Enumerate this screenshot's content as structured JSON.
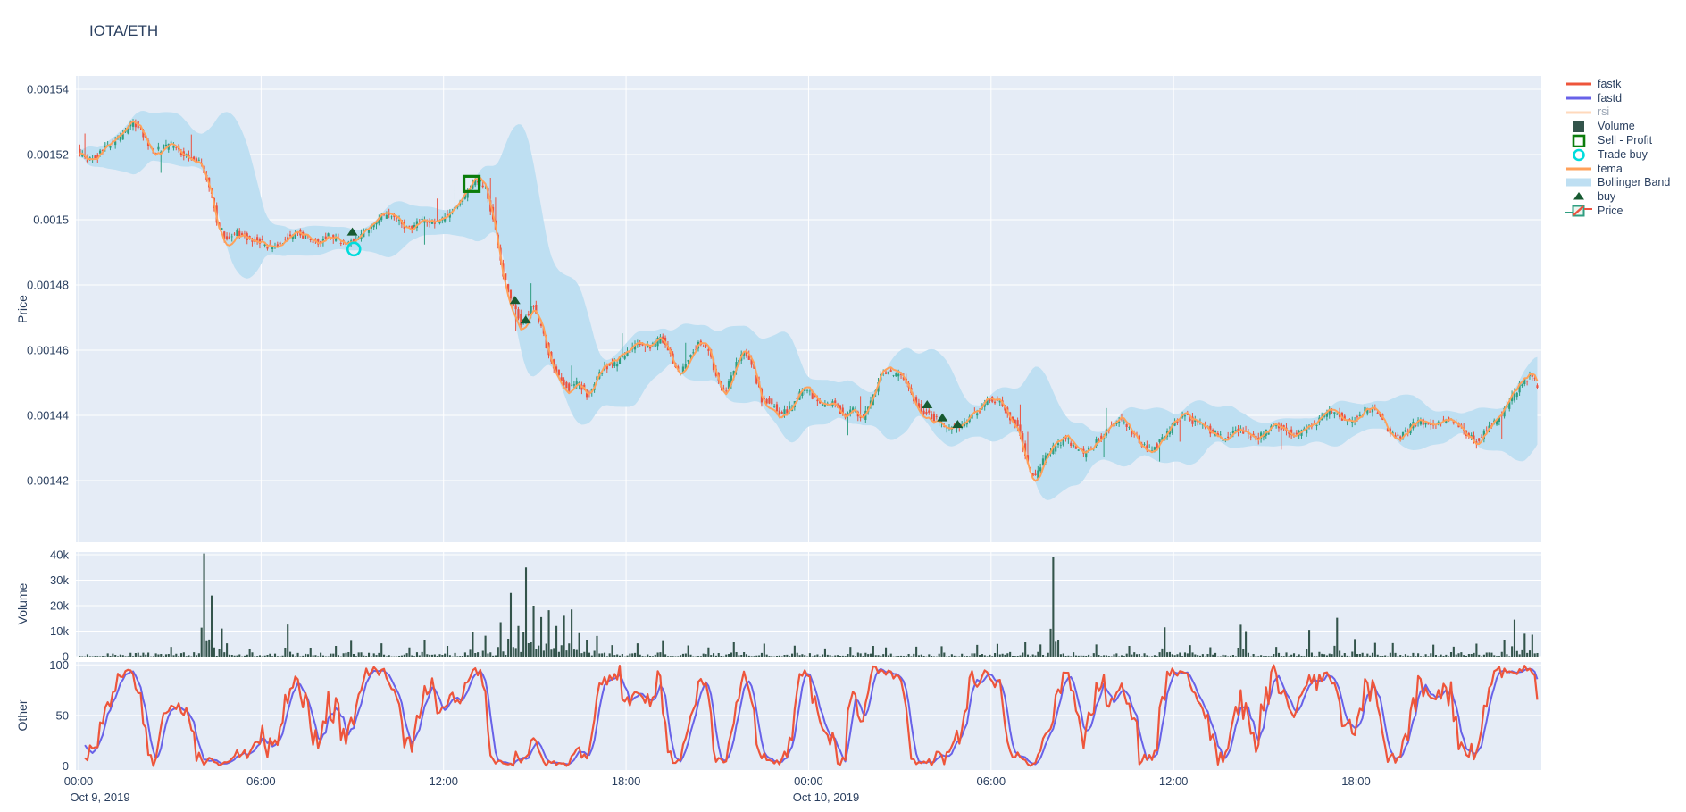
{
  "title": "IOTA/ETH",
  "chart_data": {
    "type": "candlestick",
    "symbol": "IOTA/ETH",
    "x_axis": {
      "tick_labels": [
        "00:00",
        "06:00",
        "12:00",
        "18:00",
        "00:00",
        "06:00",
        "12:00",
        "18:00"
      ],
      "tick_hours": [
        0,
        6,
        12,
        18,
        24,
        30,
        36,
        42
      ],
      "date_labels": [
        "Oct 9, 2019",
        "Oct 10, 2019"
      ],
      "range_hours": [
        0,
        48
      ],
      "start": "2019-10-09 00:00"
    },
    "panels": [
      {
        "name": "price",
        "ylabel": "Price",
        "ticks": [
          "0.00154",
          "0.00152",
          "0.0015",
          "0.00148",
          "0.00146",
          "0.00144",
          "0.00142"
        ],
        "tick_values": [
          0.00154,
          0.00152,
          0.0015,
          0.00148,
          0.00146,
          0.00144,
          0.00142
        ],
        "range": [
          0.001401,
          0.001544
        ]
      },
      {
        "name": "volume",
        "ylabel": "Volume",
        "ticks": [
          "40k",
          "30k",
          "20k",
          "10k",
          "0"
        ],
        "tick_values": [
          40000,
          30000,
          20000,
          10000,
          0
        ],
        "range": [
          0,
          41000
        ]
      },
      {
        "name": "other",
        "ylabel": "Other",
        "ticks": [
          "100",
          "50",
          "0"
        ],
        "tick_values": [
          100,
          50,
          0
        ],
        "range": [
          0,
          100
        ]
      }
    ],
    "legend": [
      {
        "label": "fastk",
        "type": "line",
        "color": "#ee553b",
        "muted": false
      },
      {
        "label": "fastd",
        "type": "line",
        "color": "#6862e8",
        "muted": false
      },
      {
        "label": "rsi",
        "type": "line",
        "color": "#ffa15a",
        "muted": true
      },
      {
        "label": "Volume",
        "type": "square",
        "color": "#33544b",
        "muted": false
      },
      {
        "label": "Sell - Profit",
        "type": "square-open",
        "color": "#0b7d0b",
        "muted": false
      },
      {
        "label": "Trade buy",
        "type": "circle-open",
        "color": "#00dcdc",
        "muted": false
      },
      {
        "label": "tema",
        "type": "line",
        "color": "#ffa15a",
        "muted": false
      },
      {
        "label": "Bollinger Band",
        "type": "band",
        "color": "#bedff2",
        "muted": false
      },
      {
        "label": "buy",
        "type": "triangle-up",
        "color": "#175a31",
        "muted": false
      },
      {
        "label": "Price",
        "type": "candlestick",
        "color": "#2f9e81",
        "muted": false
      }
    ],
    "colors": {
      "background": "#ffffff",
      "plot_bg": "#e5ecf6",
      "grid": "#ffffff",
      "text": "#2a3f5f",
      "muted_text": "#9aa5b4",
      "candle_up": "#2f9e81",
      "candle_down": "#ec5240",
      "volume_bar": "#33544b",
      "bollinger": "#bedff2",
      "tema": "#ffa15a",
      "fastk": "#ee553b",
      "fastd": "#6862e8",
      "buy": "#175a31",
      "sell_profit": "#0b7d0b",
      "trade_buy": "#00dcdc"
    },
    "indicators": {
      "stoch_period": 14,
      "stoch_smooth": 4,
      "bollinger_period": 20,
      "bollinger_k": 2.2,
      "tema_period": 8,
      "candle_minutes": 5
    },
    "price_keyframes": [
      [
        0,
        0.001521
      ],
      [
        0.3,
        0.001518
      ],
      [
        0.6,
        0.001519
      ],
      [
        0.9,
        0.001522
      ],
      [
        1.2,
        0.001524
      ],
      [
        1.5,
        0.001526
      ],
      [
        1.8,
        0.00153
      ],
      [
        2.0,
        0.001529
      ],
      [
        2.2,
        0.001525
      ],
      [
        2.5,
        0.001521
      ],
      [
        2.8,
        0.001522
      ],
      [
        3.1,
        0.001523
      ],
      [
        3.4,
        0.001521
      ],
      [
        3.7,
        0.001519
      ],
      [
        4.0,
        0.001518
      ],
      [
        4.3,
        0.001512
      ],
      [
        4.6,
        0.001499
      ],
      [
        4.9,
        0.001494
      ],
      [
        5.2,
        0.001496
      ],
      [
        5.5,
        0.001495
      ],
      [
        5.8,
        0.001494
      ],
      [
        6.1,
        0.001493
      ],
      [
        6.4,
        0.001491
      ],
      [
        6.7,
        0.001493
      ],
      [
        7.0,
        0.001495
      ],
      [
        7.3,
        0.001496
      ],
      [
        7.6,
        0.001494
      ],
      [
        7.9,
        0.001493
      ],
      [
        8.2,
        0.001495
      ],
      [
        8.5,
        0.001494
      ],
      [
        8.8,
        0.001493
      ],
      [
        9.1,
        0.001494
      ],
      [
        9.4,
        0.001496
      ],
      [
        9.7,
        0.001498
      ],
      [
        10.0,
        0.001501
      ],
      [
        10.3,
        0.001502
      ],
      [
        10.6,
        0.001499
      ],
      [
        10.9,
        0.001497
      ],
      [
        11.2,
        0.001499
      ],
      [
        11.5,
        0.0015
      ],
      [
        11.8,
        0.001499
      ],
      [
        12.1,
        0.001501
      ],
      [
        12.4,
        0.001504
      ],
      [
        12.7,
        0.001507
      ],
      [
        13.0,
        0.001511
      ],
      [
        13.2,
        0.001512
      ],
      [
        13.4,
        0.00151
      ],
      [
        13.6,
        0.001503
      ],
      [
        13.8,
        0.001494
      ],
      [
        14.0,
        0.001483
      ],
      [
        14.2,
        0.001477
      ],
      [
        14.4,
        0.001473
      ],
      [
        14.6,
        0.001468
      ],
      [
        14.8,
        0.001471
      ],
      [
        15.0,
        0.001474
      ],
      [
        15.2,
        0.001468
      ],
      [
        15.4,
        0.001462
      ],
      [
        15.6,
        0.001457
      ],
      [
        15.8,
        0.001452
      ],
      [
        16.0,
        0.00145
      ],
      [
        16.2,
        0.001448
      ],
      [
        16.5,
        0.00145
      ],
      [
        16.8,
        0.001446
      ],
      [
        17.1,
        0.001452
      ],
      [
        17.4,
        0.001455
      ],
      [
        17.7,
        0.001456
      ],
      [
        18.0,
        0.001459
      ],
      [
        18.3,
        0.001461
      ],
      [
        18.6,
        0.001462
      ],
      [
        18.9,
        0.001461
      ],
      [
        19.2,
        0.001464
      ],
      [
        19.5,
        0.001459
      ],
      [
        19.8,
        0.001452
      ],
      [
        20.1,
        0.001458
      ],
      [
        20.4,
        0.001462
      ],
      [
        20.7,
        0.001461
      ],
      [
        21.0,
        0.001452
      ],
      [
        21.3,
        0.001447
      ],
      [
        21.6,
        0.001455
      ],
      [
        21.9,
        0.00146
      ],
      [
        22.2,
        0.001455
      ],
      [
        22.5,
        0.001445
      ],
      [
        22.8,
        0.001444
      ],
      [
        23.1,
        0.00144
      ],
      [
        23.4,
        0.001442
      ],
      [
        23.7,
        0.001446
      ],
      [
        24.0,
        0.001448
      ],
      [
        24.3,
        0.001444
      ],
      [
        24.6,
        0.001443
      ],
      [
        24.9,
        0.001444
      ],
      [
        25.2,
        0.00144
      ],
      [
        25.5,
        0.001442
      ],
      [
        25.8,
        0.001439
      ],
      [
        26.1,
        0.001444
      ],
      [
        26.4,
        0.001452
      ],
      [
        26.7,
        0.001453
      ],
      [
        27.0,
        0.001453
      ],
      [
        27.3,
        0.001449
      ],
      [
        27.6,
        0.001443
      ],
      [
        27.9,
        0.001441
      ],
      [
        28.2,
        0.001439
      ],
      [
        28.5,
        0.001437
      ],
      [
        28.8,
        0.001436
      ],
      [
        29.1,
        0.001437
      ],
      [
        29.4,
        0.00144
      ],
      [
        29.7,
        0.001442
      ],
      [
        30.0,
        0.001445
      ],
      [
        30.3,
        0.001444
      ],
      [
        30.6,
        0.00144
      ],
      [
        30.9,
        0.001437
      ],
      [
        31.1,
        0.00143
      ],
      [
        31.3,
        0.001423
      ],
      [
        31.5,
        0.001421
      ],
      [
        31.7,
        0.001425
      ],
      [
        31.9,
        0.001428
      ],
      [
        32.2,
        0.001431
      ],
      [
        32.5,
        0.001433
      ],
      [
        32.8,
        0.00143
      ],
      [
        33.1,
        0.001428
      ],
      [
        33.4,
        0.001431
      ],
      [
        33.7,
        0.001434
      ],
      [
        34.0,
        0.001437
      ],
      [
        34.3,
        0.001439
      ],
      [
        34.6,
        0.001436
      ],
      [
        34.9,
        0.001432
      ],
      [
        35.2,
        0.001429
      ],
      [
        35.5,
        0.001431
      ],
      [
        35.8,
        0.001434
      ],
      [
        36.1,
        0.001438
      ],
      [
        36.4,
        0.00144
      ],
      [
        36.7,
        0.001438
      ],
      [
        37.0,
        0.001437
      ],
      [
        37.3,
        0.001435
      ],
      [
        37.6,
        0.001433
      ],
      [
        37.9,
        0.001434
      ],
      [
        38.2,
        0.001436
      ],
      [
        38.5,
        0.001434
      ],
      [
        38.8,
        0.001433
      ],
      [
        39.1,
        0.001435
      ],
      [
        39.4,
        0.001437
      ],
      [
        39.7,
        0.001436
      ],
      [
        40.0,
        0.001434
      ],
      [
        40.3,
        0.001435
      ],
      [
        40.6,
        0.001437
      ],
      [
        40.9,
        0.001439
      ],
      [
        41.2,
        0.001441
      ],
      [
        41.5,
        0.00144
      ],
      [
        41.8,
        0.001438
      ],
      [
        42.1,
        0.00144
      ],
      [
        42.4,
        0.001442
      ],
      [
        42.7,
        0.001441
      ],
      [
        43.0,
        0.001437
      ],
      [
        43.3,
        0.001433
      ],
      [
        43.6,
        0.001434
      ],
      [
        43.9,
        0.001437
      ],
      [
        44.2,
        0.001438
      ],
      [
        44.5,
        0.001437
      ],
      [
        44.8,
        0.001438
      ],
      [
        45.1,
        0.001439
      ],
      [
        45.4,
        0.001437
      ],
      [
        45.7,
        0.001434
      ],
      [
        46.0,
        0.001432
      ],
      [
        46.3,
        0.001435
      ],
      [
        46.6,
        0.001438
      ],
      [
        46.9,
        0.001441
      ],
      [
        47.2,
        0.001446
      ],
      [
        47.5,
        0.00145
      ],
      [
        47.8,
        0.001452
      ],
      [
        48.0,
        0.001449
      ]
    ],
    "volume_spikes": [
      [
        3.0,
        3800
      ],
      [
        4.07,
        40500
      ],
      [
        4.36,
        24000
      ],
      [
        4.65,
        11000
      ],
      [
        4.85,
        5200
      ],
      [
        5.6,
        2800
      ],
      [
        6.8,
        12600
      ],
      [
        7.6,
        3500
      ],
      [
        8.4,
        4200
      ],
      [
        8.9,
        6200
      ],
      [
        9.9,
        5200
      ],
      [
        10.8,
        3600
      ],
      [
        11.3,
        6400
      ],
      [
        12.1,
        4200
      ],
      [
        12.9,
        9500
      ],
      [
        13.3,
        8200
      ],
      [
        13.8,
        13500
      ],
      [
        14.2,
        25000
      ],
      [
        14.45,
        12000
      ],
      [
        14.66,
        35000
      ],
      [
        14.9,
        20000
      ],
      [
        15.15,
        15500
      ],
      [
        15.4,
        18200
      ],
      [
        15.65,
        12000
      ],
      [
        15.9,
        16000
      ],
      [
        16.15,
        18500
      ],
      [
        16.4,
        9200
      ],
      [
        16.7,
        6500
      ],
      [
        17.0,
        8100
      ],
      [
        17.5,
        4500
      ],
      [
        18.3,
        5200
      ],
      [
        19.2,
        6100
      ],
      [
        20.0,
        4400
      ],
      [
        20.7,
        3600
      ],
      [
        21.5,
        5600
      ],
      [
        22.5,
        5100
      ],
      [
        23.5,
        4300
      ],
      [
        24.5,
        3200
      ],
      [
        25.3,
        3800
      ],
      [
        26.1,
        4200
      ],
      [
        26.5,
        3600
      ],
      [
        27.5,
        3900
      ],
      [
        28.3,
        4100
      ],
      [
        29.5,
        4600
      ],
      [
        30.2,
        5000
      ],
      [
        31.1,
        5600
      ],
      [
        31.6,
        4800
      ],
      [
        32.0,
        39000
      ],
      [
        32.15,
        6500
      ],
      [
        33.4,
        4800
      ],
      [
        34.5,
        4200
      ],
      [
        35.7,
        11500
      ],
      [
        36.5,
        4500
      ],
      [
        37.2,
        3700
      ],
      [
        38.15,
        12500
      ],
      [
        38.3,
        10000
      ],
      [
        39.3,
        3800
      ],
      [
        40.4,
        10500
      ],
      [
        41.3,
        15200
      ],
      [
        41.9,
        6900
      ],
      [
        42.6,
        5400
      ],
      [
        43.2,
        5300
      ],
      [
        44.5,
        4700
      ],
      [
        45.2,
        3900
      ],
      [
        45.9,
        5100
      ],
      [
        46.8,
        6500
      ],
      [
        47.2,
        14500
      ],
      [
        47.5,
        9000
      ],
      [
        47.75,
        8600
      ]
    ],
    "markers": {
      "buy": [
        [
          9.0,
          0.001496
        ],
        [
          14.35,
          0.001475
        ],
        [
          14.7,
          0.001469
        ],
        [
          27.9,
          0.001443
        ],
        [
          28.4,
          0.001439
        ],
        [
          28.9,
          0.001437
        ]
      ],
      "trade_buy": [
        [
          9.05,
          0.001491
        ]
      ],
      "sell_profit": [
        [
          12.92,
          0.001511
        ]
      ]
    }
  }
}
